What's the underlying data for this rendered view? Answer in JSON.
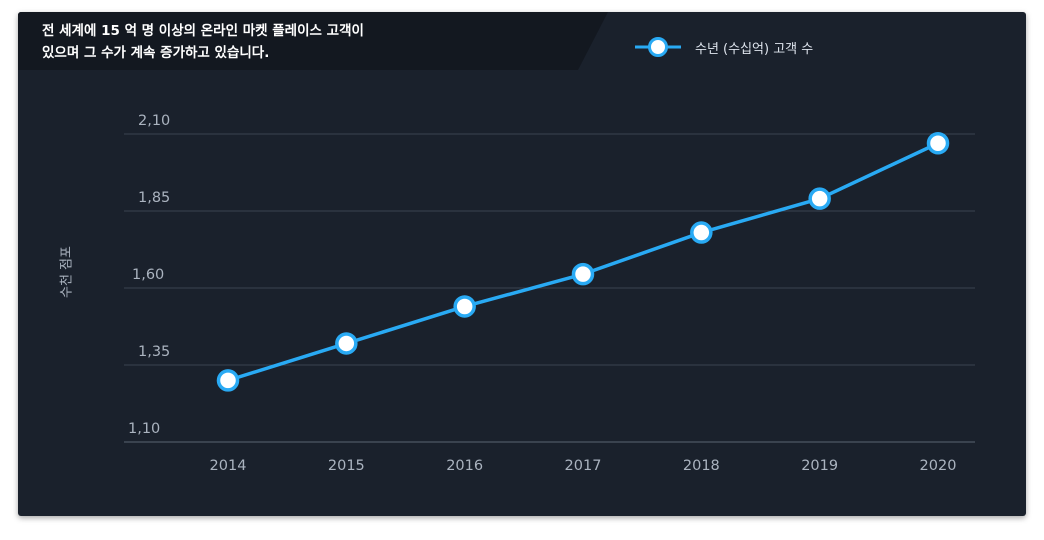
{
  "title": "전 세계에 15 억 명 이상의 온라인 마켓 플레이스 고객이\n있으며 그 수가 계속 증가하고 있습니다.",
  "legend": {
    "label": "수년 (수십억) 고객 수",
    "icon": "line-with-circle-marker"
  },
  "colors": {
    "background": "#1a212c",
    "title_band": "#131820",
    "series": "#29aaf4",
    "marker_fill": "#ffffff",
    "grid": "#3a4350",
    "tick_text": "#aab3bf"
  },
  "chart_data": {
    "type": "line",
    "title": "전 세계에 15 억 명 이상의 온라인 마켓 플레이스 고객이 있으며 그 수가 계속 증가하고 있습니다.",
    "xlabel": "",
    "ylabel": "수천 점포",
    "categories": [
      "2014",
      "2015",
      "2016",
      "2017",
      "2018",
      "2019",
      "2020"
    ],
    "series": [
      {
        "name": "수년 (수십억) 고객 수",
        "values": [
          1.3,
          1.42,
          1.54,
          1.645,
          1.78,
          1.89,
          2.07
        ]
      }
    ],
    "yticks": [
      1.1,
      1.35,
      1.6,
      1.85,
      2.1
    ],
    "ytick_labels": [
      "1,10",
      "1,35",
      "1,60",
      "1,85",
      "2,10"
    ],
    "ylim": [
      1.1,
      2.1
    ],
    "grid": true,
    "legend_position": "top-right"
  }
}
